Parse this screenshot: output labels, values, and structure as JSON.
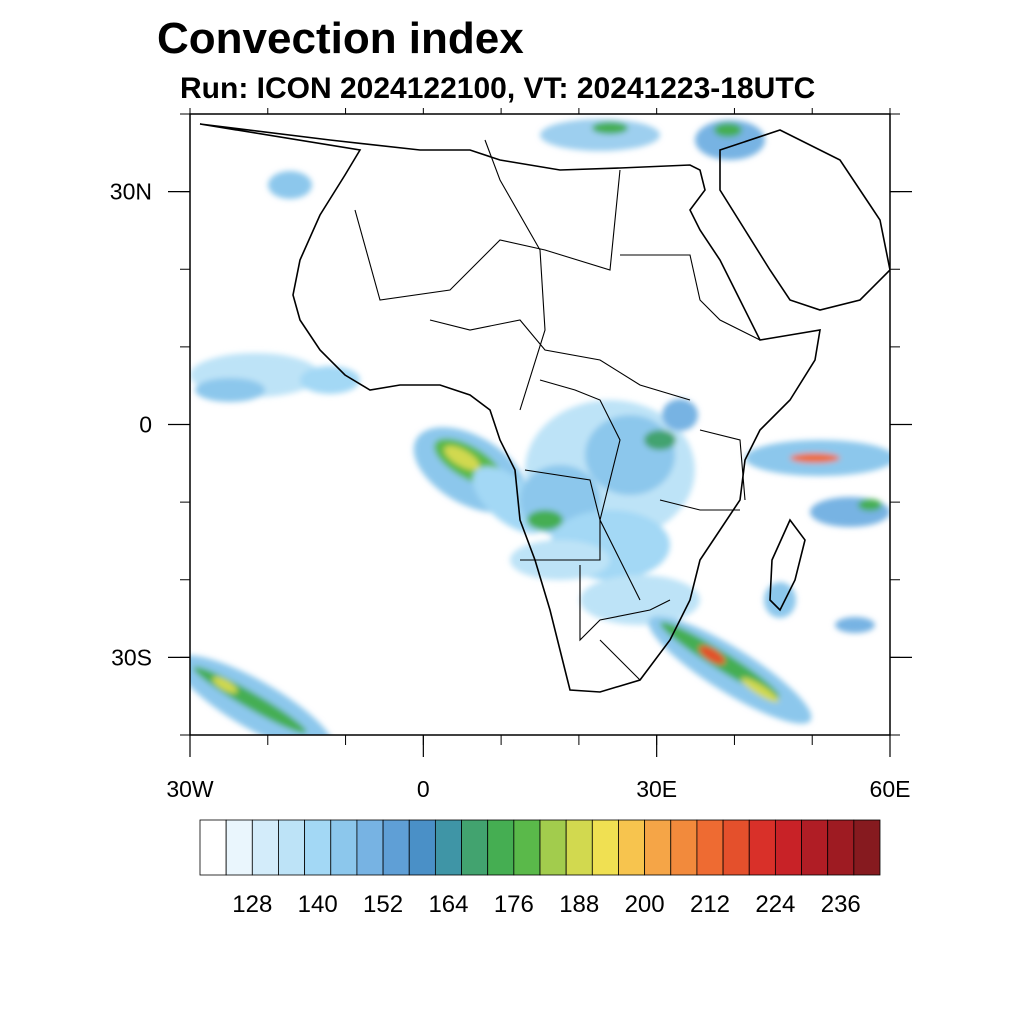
{
  "title": "Convection index",
  "subtitle": "Run: ICON 2024122100,  VT: 20241223-18UTC",
  "map": {
    "lon_range": [
      -30,
      60
    ],
    "lat_range": [
      -40,
      40
    ],
    "lat_ticks": [
      {
        "value": 30,
        "label": "30N"
      },
      {
        "value": 0,
        "label": "0"
      },
      {
        "value": -30,
        "label": "30S"
      }
    ],
    "lon_ticks": [
      {
        "value": -30,
        "label": "30W"
      },
      {
        "value": 0,
        "label": "0"
      },
      {
        "value": 30,
        "label": "30E"
      },
      {
        "value": 60,
        "label": "60E"
      }
    ]
  },
  "colorbar": {
    "labels": [
      "128",
      "140",
      "152",
      "164",
      "176",
      "188",
      "200",
      "212",
      "224",
      "236"
    ],
    "colors": [
      "#ffffff",
      "#eaf6fd",
      "#d3ecfa",
      "#bde3f7",
      "#a3d8f5",
      "#8cc7ec",
      "#77b3e3",
      "#5f9fd6",
      "#4a90c7",
      "#3f95a6",
      "#42a36f",
      "#45ae52",
      "#5ab94a",
      "#a2cc4d",
      "#d2d94f",
      "#f0e052",
      "#f7c44e",
      "#f5a547",
      "#f28a3c",
      "#ee6b32",
      "#e4502c",
      "#d93029",
      "#c82227",
      "#b01d25",
      "#9e1b22",
      "#861a1f"
    ]
  }
}
